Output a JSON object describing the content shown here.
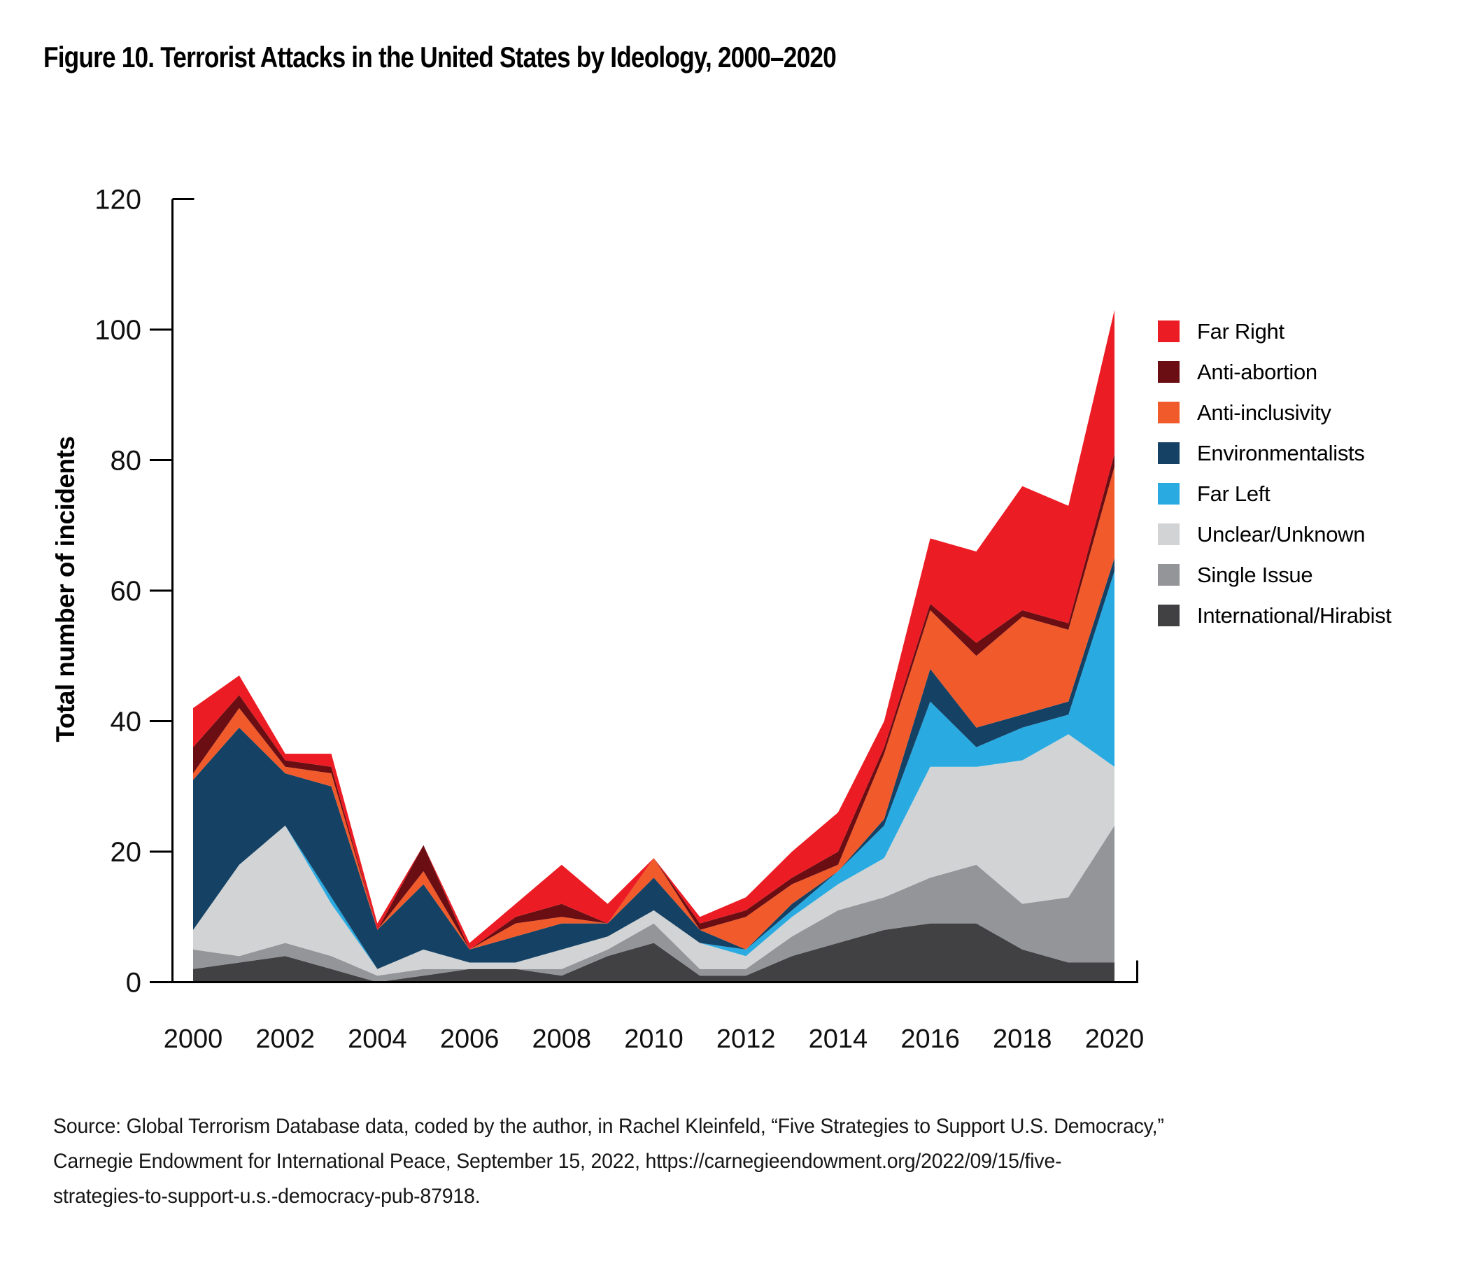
{
  "title": "Figure 10. Terrorist Attacks in the United States by Ideology, 2000–2020",
  "source": {
    "lines": [
      "Source: Global Terrorism Database data, coded by the author, in Rachel Kleinfeld, “Five Strategies to Support U.S. Democracy,”",
      "Carnegie Endowment for International Peace, September 15, 2022, https://carnegieendowment.org/2022/09/15/five-",
      "strategies-to-support-u.s.-democracy-pub-87918."
    ]
  },
  "chart_data": {
    "type": "area",
    "subtype": "stacked-area",
    "title": "Figure 10. Terrorist Attacks in the United States by Ideology, 2000–2020",
    "xlabel": "",
    "ylabel": "Total number of incidents",
    "ylim": [
      0,
      120
    ],
    "y_ticks": [
      0,
      20,
      40,
      60,
      80,
      100,
      120
    ],
    "x": [
      2000,
      2001,
      2002,
      2003,
      2004,
      2005,
      2006,
      2007,
      2008,
      2009,
      2010,
      2011,
      2012,
      2013,
      2014,
      2015,
      2016,
      2017,
      2018,
      2019,
      2020
    ],
    "x_tick_labels": [
      "2000",
      "2002",
      "2004",
      "2006",
      "2008",
      "2010",
      "2012",
      "2014",
      "2016",
      "2018",
      "2020"
    ],
    "grid": "off",
    "legend_position": "right",
    "legend_order_top_to_bottom": [
      "Far Right",
      "Anti-abortion",
      "Anti-inclusivity",
      "Environmentalists",
      "Far Left",
      "Unclear/Unknown",
      "Single Issue",
      "International/Hirabist"
    ],
    "series": [
      {
        "name": "International/Hirabist",
        "color": "#414042",
        "values": [
          2,
          3,
          4,
          2,
          0,
          1,
          2,
          2,
          1,
          4,
          6,
          1,
          1,
          4,
          6,
          8,
          9,
          9,
          5,
          3,
          3
        ]
      },
      {
        "name": "Single Issue",
        "color": "#939598",
        "values": [
          3,
          1,
          2,
          2,
          1,
          1,
          0,
          0,
          1,
          1,
          3,
          1,
          1,
          3,
          5,
          5,
          7,
          9,
          7,
          10,
          21
        ]
      },
      {
        "name": "Unclear/Unknown",
        "color": "#D1D3D4",
        "values": [
          3,
          14,
          18,
          8,
          1,
          3,
          1,
          1,
          3,
          2,
          2,
          4,
          2,
          3,
          4,
          6,
          17,
          15,
          22,
          25,
          9
        ]
      },
      {
        "name": "Far Left",
        "color": "#29ABE2",
        "values": [
          0,
          0,
          0,
          1,
          0,
          0,
          0,
          0,
          0,
          0,
          0,
          0,
          1,
          1,
          2,
          5,
          10,
          3,
          5,
          3,
          30
        ]
      },
      {
        "name": "Environmentalists",
        "color": "#144164",
        "values": [
          23,
          21,
          8,
          17,
          6,
          10,
          2,
          4,
          4,
          2,
          5,
          2,
          0,
          1,
          0,
          1,
          5,
          3,
          2,
          2,
          2
        ]
      },
      {
        "name": "Anti-inclusivity",
        "color": "#F15B2B",
        "values": [
          1,
          3,
          1,
          2,
          0,
          2,
          0,
          2,
          1,
          0,
          3,
          0,
          5,
          3,
          1,
          10,
          9,
          11,
          15,
          11,
          14
        ]
      },
      {
        "name": "Anti-abortion",
        "color": "#6B0E13",
        "values": [
          4,
          2,
          1,
          1,
          0,
          4,
          0,
          1,
          2,
          0,
          0,
          1,
          1,
          1,
          2,
          1,
          1,
          2,
          1,
          1,
          2
        ]
      },
      {
        "name": "Far Right",
        "color": "#EC1C24",
        "values": [
          6,
          3,
          1,
          2,
          1,
          0,
          1,
          2,
          6,
          3,
          0,
          1,
          2,
          4,
          6,
          4,
          10,
          14,
          19,
          18,
          22
        ]
      }
    ],
    "totals": [
      42,
      47,
      35,
      35,
      9,
      21,
      6,
      12,
      18,
      12,
      19,
      10,
      13,
      20,
      26,
      40,
      68,
      66,
      76,
      73,
      103
    ],
    "stacking": "bottom_to_top_as_listed"
  }
}
